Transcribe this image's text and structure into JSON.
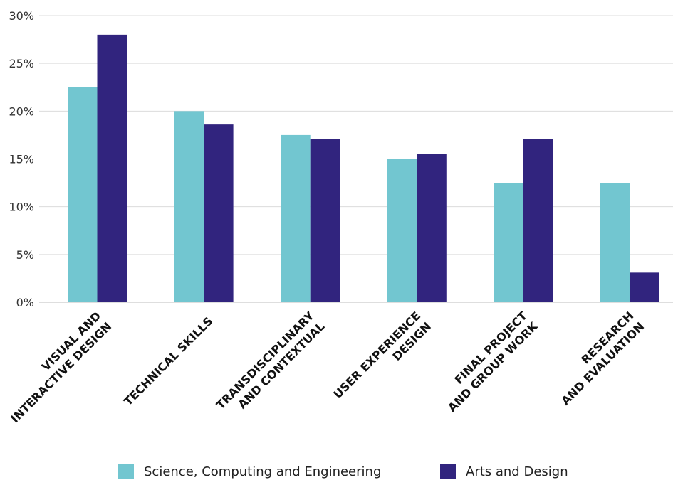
{
  "chart_data": {
    "type": "bar",
    "categories": [
      [
        "VISUAL AND",
        "INTERACTIVE DESIGN"
      ],
      [
        "TECHNICAL SKILLS"
      ],
      [
        "TRANSDISCIPLINARY",
        "AND CONTEXTUAL"
      ],
      [
        "USER EXPERIENCE",
        "DESIGN"
      ],
      [
        "FINAL PROJECT",
        "AND GROUP WORK"
      ],
      [
        "RESEARCH",
        "AND EVALUATION"
      ]
    ],
    "series": [
      {
        "name": "Science, Computing and Engineering",
        "color": "#72C6D0",
        "values": [
          22.5,
          20.0,
          17.5,
          15.0,
          12.5,
          12.5
        ]
      },
      {
        "name": "Arts and Design",
        "color": "#31247E",
        "values": [
          28.0,
          18.6,
          17.1,
          15.5,
          17.1,
          3.1
        ]
      }
    ],
    "yticks": [
      "0%",
      "5%",
      "10%",
      "15%",
      "20%",
      "25%",
      "30%"
    ],
    "ylim": [
      0,
      30
    ],
    "grid": true,
    "legend_position": "bottom"
  }
}
